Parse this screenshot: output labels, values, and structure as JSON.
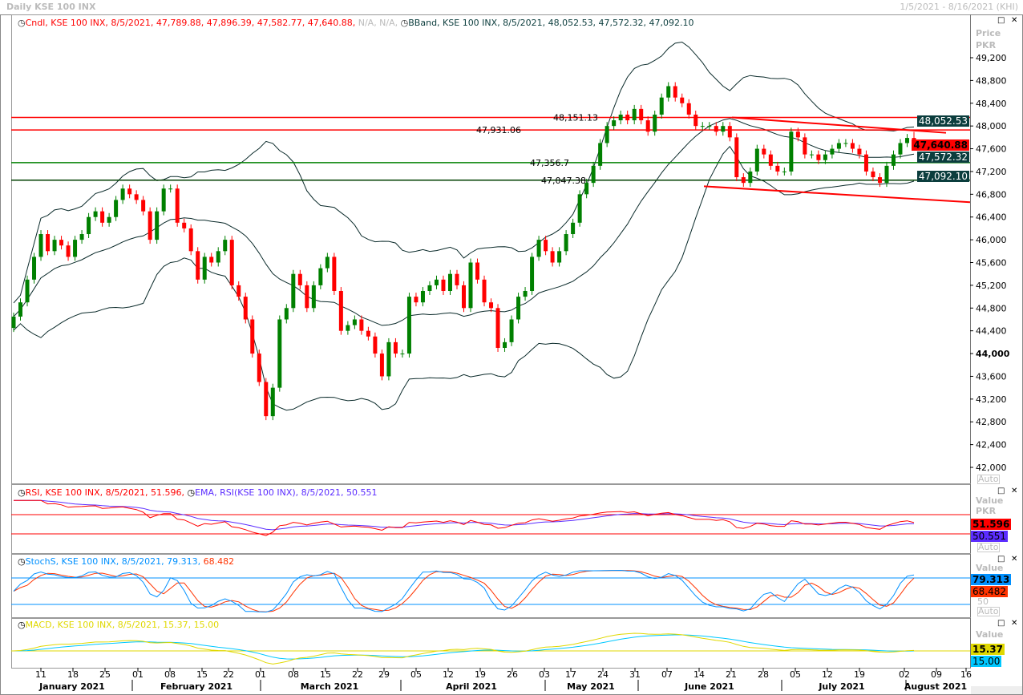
{
  "window": {
    "title": "Daily KSE 100 INX",
    "range": "1/5/2021 - 8/16/2021 (KHI)"
  },
  "panels": {
    "price": {
      "legend_cndl": "Cndl, KSE 100 INX, 8/5/2021, 47,789.88, 47,896.39, 47,582.77, 47,640.88,",
      "legend_na": "N/A, N/A,",
      "legend_bband": "BBand, KSE 100 INX, 8/5/2021, 48,052.53, 47,572.32, 47,092.10",
      "axis_title": "Price",
      "axis_unit": "PKR",
      "auto": "Auto",
      "badges": [
        {
          "text": "48,052.53",
          "color": "#0b3d3d"
        },
        {
          "text": "47,640.88",
          "color": "#ff0000"
        },
        {
          "text": "47,572.32",
          "color": "#0b3d3d"
        },
        {
          "text": "47,092.10",
          "color": "#0b3d3d"
        }
      ]
    },
    "rsi": {
      "legend_a": "RSI, KSE 100 INX, 8/5/2021, 51.596,",
      "legend_b": "EMA, RSI(KSE 100 INX), 8/5/2021, 50.551",
      "axis_title": "Value",
      "axis_unit": "PKR",
      "auto": "Auto",
      "badge_a": "51.596",
      "badge_b": "50.551",
      "color_a": "#ff0000",
      "color_b": "#5b2cff",
      "levels": [
        70,
        30
      ]
    },
    "stoch": {
      "legend_a": "StochS, KSE 100 INX, 8/5/2021, 79.313,",
      "legend_b": "68.482",
      "axis_title": "Value",
      "auto": "Auto",
      "badge_a": "79.313",
      "badge_b": "68.482",
      "color_a": "#0090ff",
      "color_b": "#ff3300",
      "levels": [
        80,
        20
      ],
      "tick": "50"
    },
    "macd": {
      "legend_a": "MACD, KSE 100 INX, 8/5/2021, 15.37, 15.00",
      "axis_title": "Value",
      "axis_unit": "PKR",
      "badge_a": "15.37",
      "badge_b": "15.00",
      "color_a": "#e0d800",
      "color_b": "#00c8ff"
    }
  },
  "chart_data": {
    "type": "candlestick",
    "ylim": [
      42000,
      49200
    ],
    "yticks": [
      "49,200",
      "48,800",
      "48,400",
      "48,000",
      "47,600",
      "47,200",
      "46,800",
      "46,400",
      "46,000",
      "45,600",
      "45,200",
      "44,800",
      "44,400",
      "44,000",
      "43,600",
      "43,200",
      "42,800",
      "42,400",
      "42,000"
    ],
    "last_candle": {
      "date": "8/5/2021",
      "open": 47789.88,
      "high": 47896.39,
      "low": 47582.77,
      "close": 47640.88
    },
    "close": [
      44650,
      44900,
      45300,
      45700,
      46100,
      45800,
      46000,
      45900,
      45700,
      46000,
      46100,
      46400,
      46500,
      46300,
      46400,
      46700,
      46900,
      46800,
      46700,
      46500,
      46000,
      46500,
      46900,
      46900,
      46300,
      46200,
      45800,
      45300,
      45700,
      45600,
      45800,
      46000,
      45200,
      45000,
      44600,
      44000,
      43500,
      42900,
      43400,
      44600,
      44800,
      45400,
      45200,
      44800,
      45200,
      45500,
      45700,
      45100,
      44400,
      44500,
      44600,
      44400,
      44300,
      44000,
      43600,
      44200,
      44000,
      44000,
      45000,
      44900,
      45100,
      45200,
      45300,
      45100,
      45400,
      45200,
      44800,
      45600,
      45300,
      44900,
      44800,
      44100,
      44200,
      44600,
      45000,
      45100,
      45700,
      46000,
      45800,
      45600,
      45800,
      46100,
      46300,
      46800,
      47000,
      47300,
      47700,
      48000,
      48100,
      48200,
      48100,
      48300,
      48100,
      47900,
      48200,
      48500,
      48700,
      48500,
      48400,
      48200,
      48000,
      48000,
      48000,
      47900,
      48000,
      47800,
      47100,
      47000,
      47200,
      47600,
      47500,
      47300,
      47200,
      47200,
      47900,
      47800,
      47500,
      47500,
      47400,
      47500,
      47600,
      47700,
      47700,
      47600,
      47500,
      47200,
      47100,
      47000,
      47300,
      47500,
      47700,
      47789.88,
      47640.88
    ],
    "hlines": [
      {
        "value": 48151.13,
        "label": "48,151.13",
        "color": "#ff0000"
      },
      {
        "value": 47931.06,
        "label": "47,931.06",
        "color": "#ff0000"
      },
      {
        "value": 47356.7,
        "label": "47,356.7",
        "color": "#008000"
      },
      {
        "value": 47047.38,
        "label": "47,047.38",
        "color": "#004000"
      }
    ],
    "trendlines": [
      {
        "from": {
          "date": "6/22/2021",
          "price": 48150
        },
        "to": {
          "date": "8/6/2021",
          "price": 47880
        },
        "color": "#ff0000"
      },
      {
        "from": {
          "date": "6/17/2021",
          "price": 46940
        },
        "to": {
          "date": "8/16/2021",
          "price": 46660
        },
        "color": "#ff0000"
      }
    ],
    "xticks": [
      "11",
      "18",
      "25",
      "01",
      "08",
      "15",
      "22",
      "01",
      "08",
      "15",
      "22",
      "29",
      "05",
      "12",
      "19",
      "26",
      "03",
      "17",
      "24",
      "31",
      "07",
      "14",
      "21",
      "28",
      "05",
      "12",
      "19",
      "02",
      "09",
      "16"
    ],
    "months": [
      "January 2021",
      "February 2021",
      "March 2021",
      "April 2021",
      "May 2021",
      "June 2021",
      "July 2021",
      "August 2021"
    ]
  }
}
